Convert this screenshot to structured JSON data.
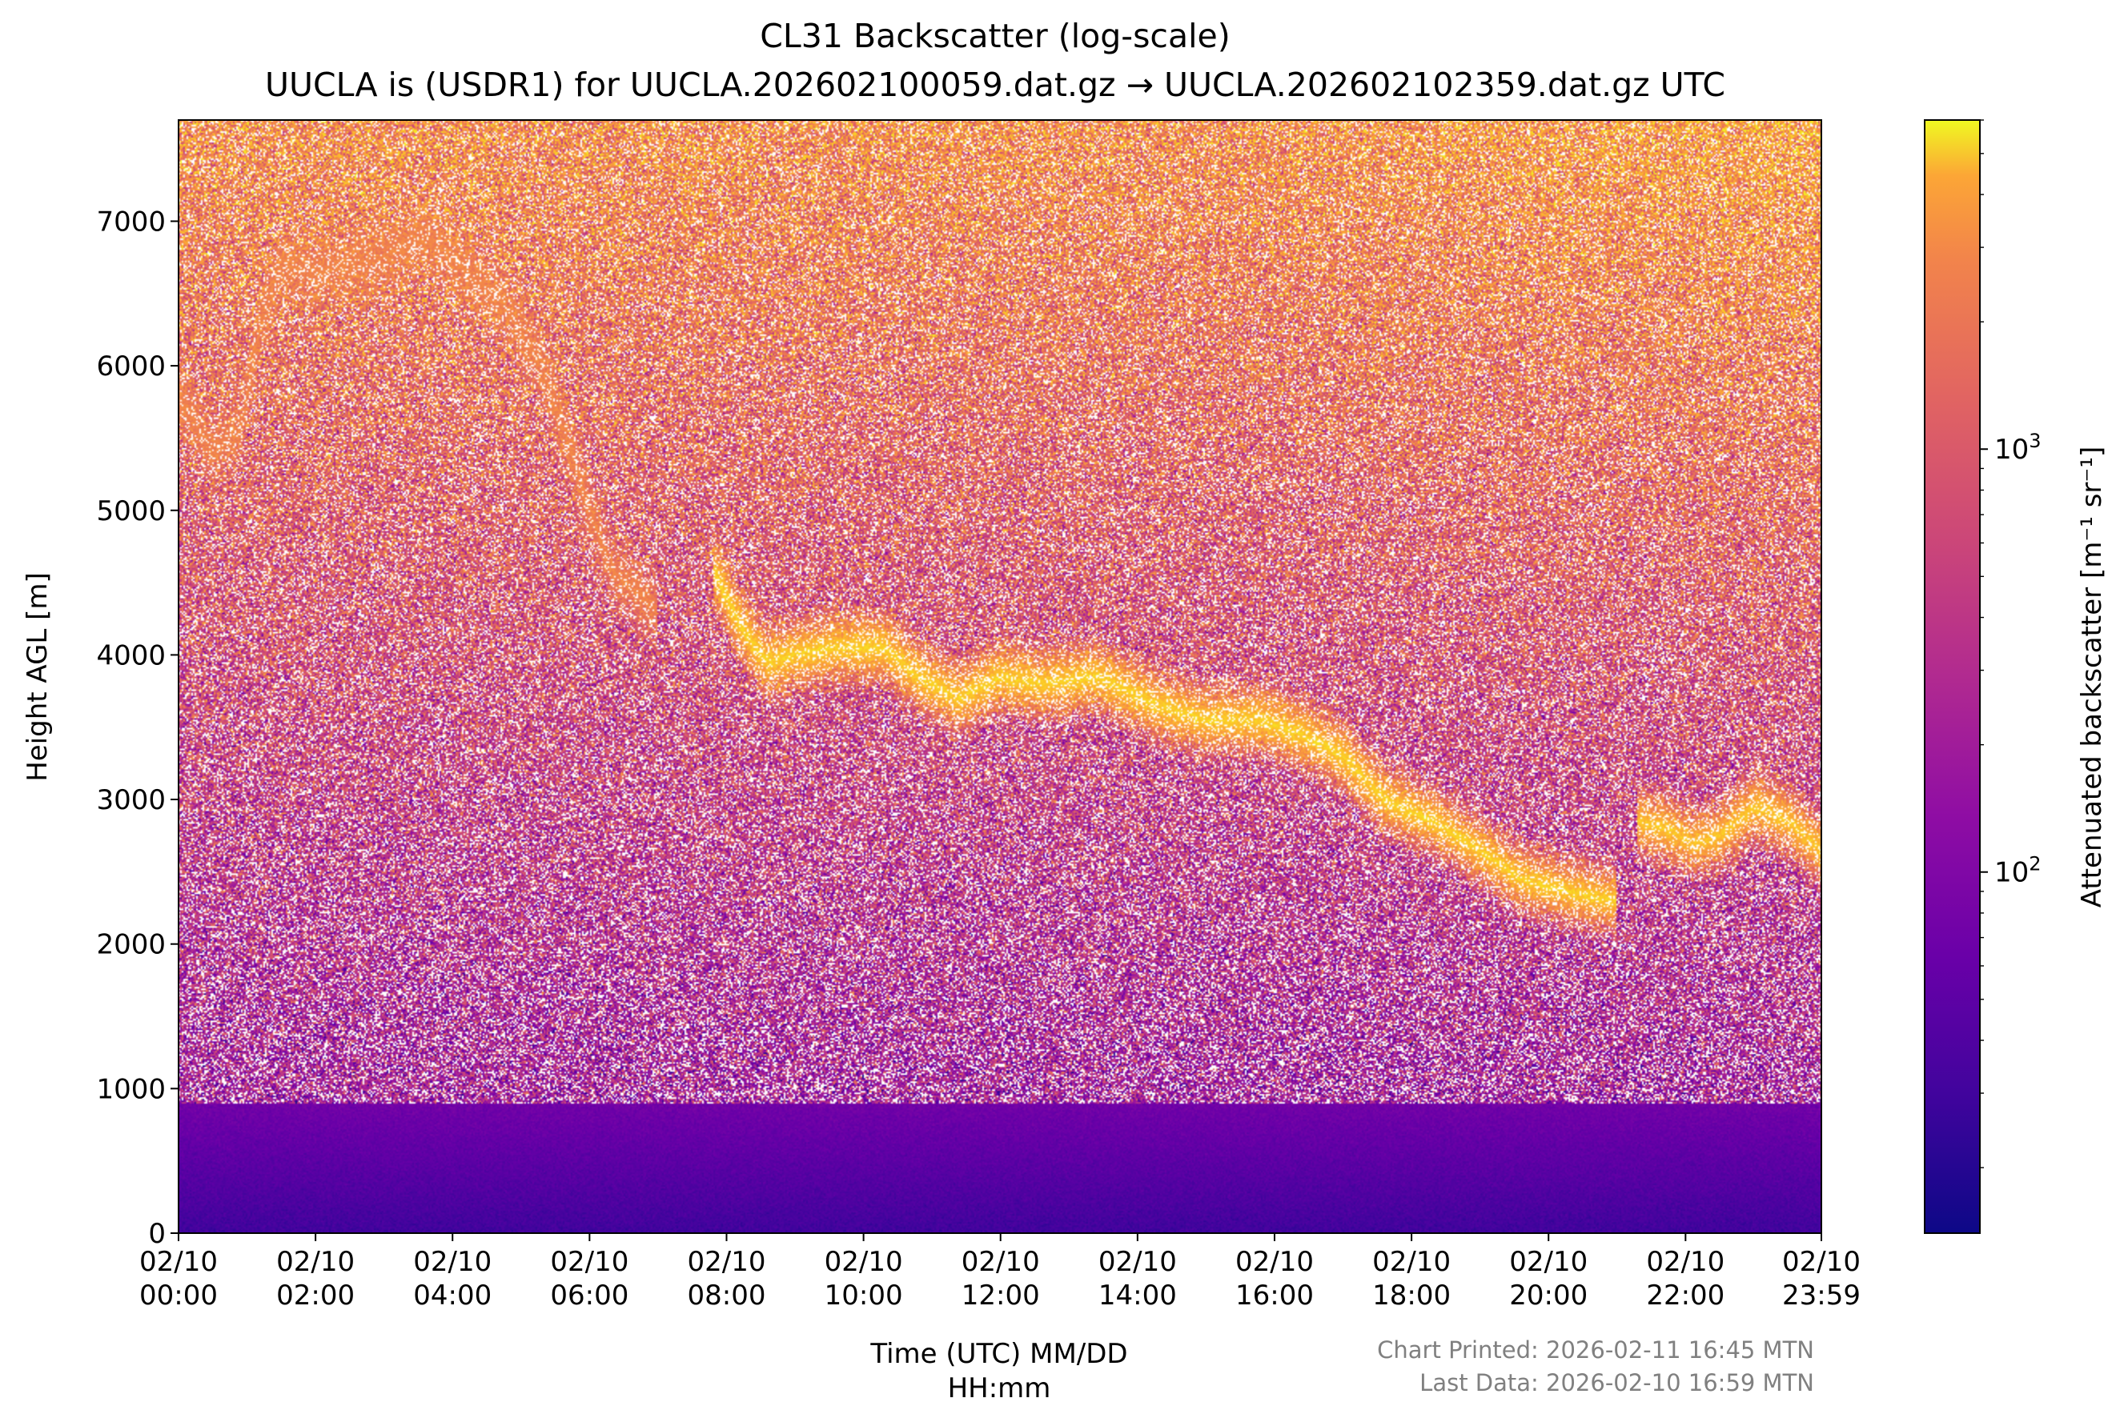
{
  "chart_data": {
    "type": "heatmap",
    "title": "CL31 Backscatter (log-scale)",
    "subtitle": "UUCLA is (USDR1) for UUCLA.202602100059.dat.gz → UUCLA.202602102359.dat.gz UTC",
    "xlabel_line1": "Time (UTC) MM/DD",
    "xlabel_line2": "HH:mm",
    "ylabel": "Height AGL [m]",
    "colorbar_label": "Attenuated backscatter [m⁻¹ sr⁻¹]",
    "colormap": "plasma",
    "log_scale": true,
    "xlim_hours": [
      0,
      23.983
    ],
    "ylim": [
      0,
      7700
    ],
    "color_range": [
      14,
      6000
    ],
    "x_ticks": [
      {
        "hours": 0,
        "line1": "02/10",
        "line2": "00:00"
      },
      {
        "hours": 2,
        "line1": "02/10",
        "line2": "02:00"
      },
      {
        "hours": 4,
        "line1": "02/10",
        "line2": "04:00"
      },
      {
        "hours": 6,
        "line1": "02/10",
        "line2": "06:00"
      },
      {
        "hours": 8,
        "line1": "02/10",
        "line2": "08:00"
      },
      {
        "hours": 10,
        "line1": "02/10",
        "line2": "10:00"
      },
      {
        "hours": 12,
        "line1": "02/10",
        "line2": "12:00"
      },
      {
        "hours": 14,
        "line1": "02/10",
        "line2": "14:00"
      },
      {
        "hours": 16,
        "line1": "02/10",
        "line2": "16:00"
      },
      {
        "hours": 18,
        "line1": "02/10",
        "line2": "18:00"
      },
      {
        "hours": 20,
        "line1": "02/10",
        "line2": "20:00"
      },
      {
        "hours": 22,
        "line1": "02/10",
        "line2": "22:00"
      },
      {
        "hours": 23.983,
        "line1": "02/10",
        "line2": "23:59"
      }
    ],
    "y_ticks": [
      {
        "value": 0,
        "label": "0"
      },
      {
        "value": 1000,
        "label": "1000"
      },
      {
        "value": 2000,
        "label": "2000"
      },
      {
        "value": 3000,
        "label": "3000"
      },
      {
        "value": 4000,
        "label": "4000"
      },
      {
        "value": 5000,
        "label": "5000"
      },
      {
        "value": 6000,
        "label": "6000"
      },
      {
        "value": 7000,
        "label": "7000"
      }
    ],
    "colorbar_ticks": [
      {
        "value": 100,
        "base": "10",
        "exp": "2"
      },
      {
        "value": 1000,
        "base": "10",
        "exp": "3"
      }
    ],
    "cloud_layers": [
      {
        "t": [
          0.0,
          0.5,
          0.9,
          1.2,
          1.5,
          2.0,
          3.0,
          3.6,
          4.2,
          4.8,
          5.3,
          5.8,
          6.3,
          7.0
        ],
        "h": [
          5800,
          5400,
          5550,
          6300,
          6700,
          6650,
          6750,
          6900,
          6650,
          6400,
          6000,
          5300,
          4600,
          4300
        ],
        "level": 1000
      },
      {
        "t": [
          7.8,
          8.2,
          8.6,
          9.0,
          9.6,
          10.3,
          10.8,
          11.4,
          12.0,
          12.6,
          13.4,
          14.3,
          15.0,
          15.8,
          16.4,
          17.0,
          17.6,
          18.3,
          19.0,
          19.6,
          20.4,
          21.0
        ],
        "h": [
          4600,
          4200,
          3950,
          4000,
          4050,
          4050,
          3850,
          3700,
          3850,
          3800,
          3850,
          3650,
          3550,
          3550,
          3450,
          3300,
          3000,
          2850,
          2650,
          2450,
          2350,
          2300
        ],
        "level": 3500
      },
      {
        "t": [
          21.3,
          21.7,
          22.1,
          22.5,
          23.0,
          23.5,
          23.98
        ],
        "h": [
          2850,
          2800,
          2700,
          2750,
          2950,
          2850,
          2650
        ],
        "level": 3000
      }
    ]
  },
  "footer": {
    "printed": "Chart Printed: 2026-02-11 16:45 MTN",
    "last_data": "Last Data: 2026-02-10 16:59 MTN"
  }
}
